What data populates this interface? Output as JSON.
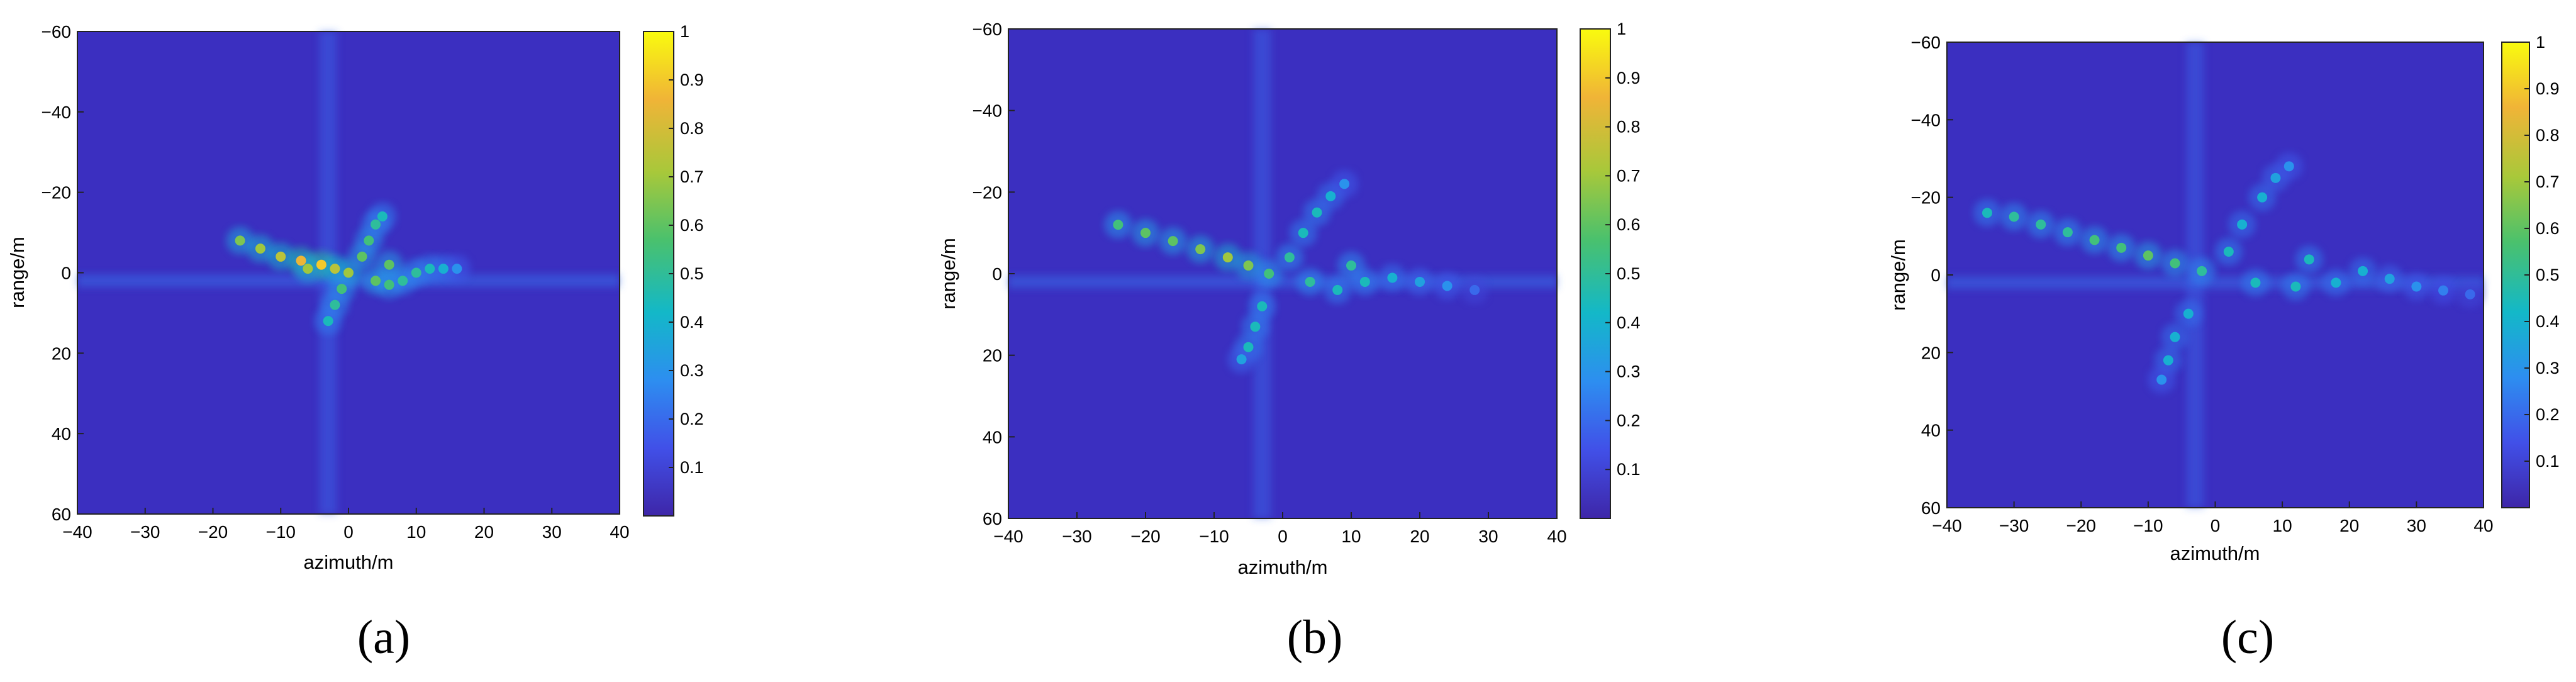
{
  "figure": {
    "panels": [
      {
        "caption": "(a)",
        "xlabel": "azimuth/m",
        "ylabel": "range/m",
        "xticks": [
          "−40",
          "−30",
          "−20",
          "−10",
          "0",
          "10",
          "20",
          "30",
          "40"
        ],
        "yticks": [
          "−60",
          "−40",
          "−20",
          "0",
          "20",
          "40",
          "60"
        ],
        "colorbar_ticks": [
          "1",
          "0.9",
          "0.8",
          "0.7",
          "0.6",
          "0.5",
          "0.4",
          "0.3",
          "0.2",
          "0.1"
        ]
      },
      {
        "caption": "(b)",
        "xlabel": "azimuth/m",
        "ylabel": "range/m",
        "xticks": [
          "−40",
          "−30",
          "−20",
          "−10",
          "0",
          "10",
          "20",
          "30",
          "40"
        ],
        "yticks": [
          "−60",
          "−40",
          "−20",
          "0",
          "20",
          "40",
          "60"
        ],
        "colorbar_ticks": [
          "1",
          "0.9",
          "0.8",
          "0.7",
          "0.6",
          "0.5",
          "0.4",
          "0.3",
          "0.2",
          "0.1"
        ]
      },
      {
        "caption": "(c)",
        "xlabel": "azimuth/m",
        "ylabel": "range/m",
        "xticks": [
          "−40",
          "−30",
          "−20",
          "−10",
          "0",
          "10",
          "20",
          "30",
          "40"
        ],
        "yticks": [
          "−60",
          "−40",
          "−20",
          "0",
          "20",
          "40",
          "60"
        ],
        "colorbar_ticks": [
          "1",
          "0.9",
          "0.8",
          "0.7",
          "0.6",
          "0.5",
          "0.4",
          "0.3",
          "0.2",
          "0.1"
        ]
      }
    ]
  },
  "colors": {
    "background": "#3a2fbf",
    "colormap": [
      "#3e26a8",
      "#4150e8",
      "#2d8ef0",
      "#13b8c8",
      "#4ac16d",
      "#a8c83a",
      "#f0b437",
      "#f9fb0e"
    ]
  },
  "chart_data": [
    {
      "type": "heatmap",
      "colormap": "parula",
      "xlim": [
        -40,
        40
      ],
      "ylim": [
        60,
        -60
      ],
      "clim": [
        0,
        1
      ],
      "grid": false,
      "target_points": [
        [
          -16,
          -8,
          0.65
        ],
        [
          -13,
          -6,
          0.7
        ],
        [
          -10,
          -4,
          0.75
        ],
        [
          -7,
          -3,
          0.85
        ],
        [
          -4,
          -2,
          0.9
        ],
        [
          -2,
          -1,
          0.75
        ],
        [
          0,
          0,
          0.7
        ],
        [
          2,
          -4,
          0.6
        ],
        [
          3,
          -8,
          0.55
        ],
        [
          4,
          -12,
          0.5
        ],
        [
          5,
          -14,
          0.45
        ],
        [
          4,
          2,
          0.6
        ],
        [
          6,
          3,
          0.55
        ],
        [
          8,
          2,
          0.5
        ],
        [
          10,
          0,
          0.5
        ],
        [
          12,
          -1,
          0.45
        ],
        [
          14,
          -1,
          0.4
        ],
        [
          16,
          -1,
          0.3
        ],
        [
          -1,
          4,
          0.55
        ],
        [
          -2,
          8,
          0.5
        ],
        [
          -3,
          12,
          0.45
        ],
        [
          -6,
          -1,
          0.7
        ],
        [
          6,
          -2,
          0.6
        ]
      ],
      "title": "",
      "xlabel": "azimuth/m",
      "ylabel": "range/m"
    },
    {
      "type": "heatmap",
      "colormap": "parula",
      "xlim": [
        -40,
        40
      ],
      "ylim": [
        60,
        -60
      ],
      "clim": [
        0,
        1
      ],
      "grid": false,
      "target_points": [
        [
          -24,
          -12,
          0.55
        ],
        [
          -20,
          -10,
          0.6
        ],
        [
          -16,
          -8,
          0.6
        ],
        [
          -12,
          -6,
          0.65
        ],
        [
          -8,
          -4,
          0.7
        ],
        [
          -5,
          -2,
          0.65
        ],
        [
          -2,
          0,
          0.55
        ],
        [
          1,
          -4,
          0.5
        ],
        [
          3,
          -10,
          0.45
        ],
        [
          5,
          -15,
          0.45
        ],
        [
          7,
          -19,
          0.4
        ],
        [
          9,
          -22,
          0.3
        ],
        [
          4,
          2,
          0.5
        ],
        [
          8,
          4,
          0.45
        ],
        [
          12,
          2,
          0.45
        ],
        [
          16,
          1,
          0.4
        ],
        [
          20,
          2,
          0.35
        ],
        [
          24,
          3,
          0.3
        ],
        [
          28,
          4,
          0.2
        ],
        [
          -3,
          8,
          0.45
        ],
        [
          -4,
          13,
          0.45
        ],
        [
          -5,
          18,
          0.45
        ],
        [
          -6,
          21,
          0.35
        ],
        [
          10,
          -2,
          0.5
        ]
      ],
      "title": "",
      "xlabel": "azimuth/m",
      "ylabel": "range/m"
    },
    {
      "type": "heatmap",
      "colormap": "parula",
      "xlim": [
        -40,
        40
      ],
      "ylim": [
        60,
        -60
      ],
      "clim": [
        0,
        1
      ],
      "grid": false,
      "target_points": [
        [
          -34,
          -16,
          0.45
        ],
        [
          -30,
          -15,
          0.5
        ],
        [
          -26,
          -13,
          0.5
        ],
        [
          -22,
          -11,
          0.5
        ],
        [
          -18,
          -9,
          0.55
        ],
        [
          -14,
          -7,
          0.55
        ],
        [
          -10,
          -5,
          0.6
        ],
        [
          -6,
          -3,
          0.55
        ],
        [
          -2,
          -1,
          0.5
        ],
        [
          2,
          -6,
          0.45
        ],
        [
          4,
          -13,
          0.4
        ],
        [
          7,
          -20,
          0.4
        ],
        [
          9,
          -25,
          0.35
        ],
        [
          11,
          -28,
          0.3
        ],
        [
          6,
          2,
          0.45
        ],
        [
          12,
          3,
          0.45
        ],
        [
          18,
          2,
          0.4
        ],
        [
          22,
          -1,
          0.4
        ],
        [
          26,
          1,
          0.35
        ],
        [
          30,
          3,
          0.3
        ],
        [
          34,
          4,
          0.25
        ],
        [
          38,
          5,
          0.2
        ],
        [
          -4,
          10,
          0.4
        ],
        [
          -6,
          16,
          0.4
        ],
        [
          -7,
          22,
          0.4
        ],
        [
          -8,
          27,
          0.3
        ],
        [
          14,
          -4,
          0.45
        ]
      ],
      "title": "",
      "xlabel": "azimuth/m",
      "ylabel": "range/m"
    }
  ]
}
